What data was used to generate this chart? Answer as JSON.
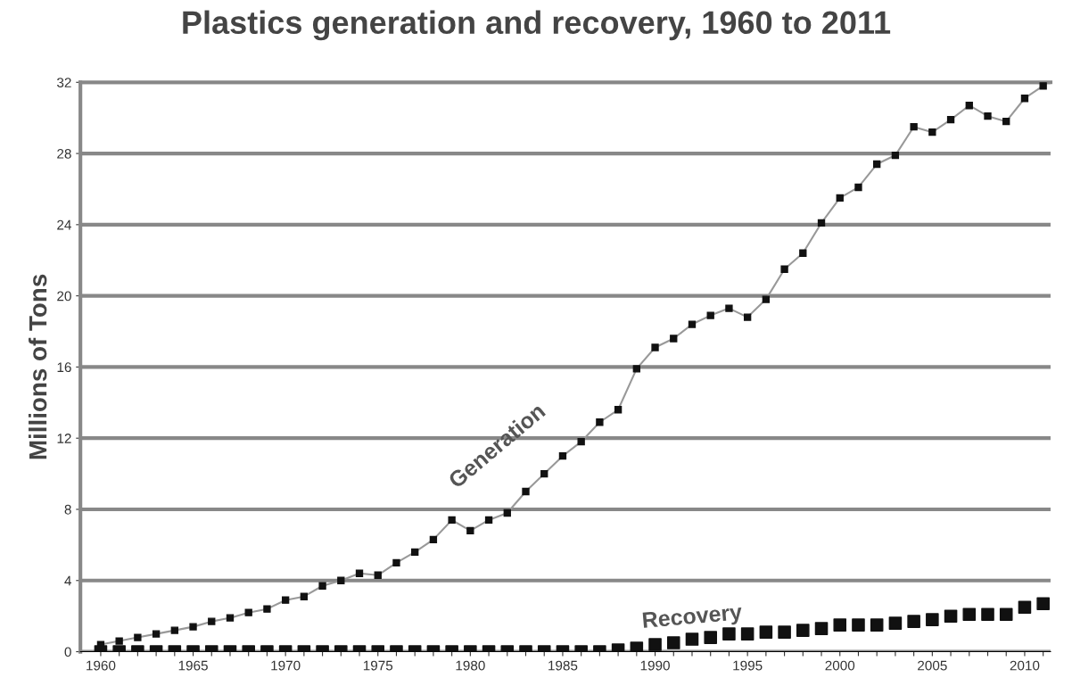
{
  "chart_data": {
    "type": "line",
    "title": "Plastics generation and recovery, 1960 to 2011",
    "ylabel": "Millions of Tons",
    "x": [
      1960,
      1961,
      1962,
      1963,
      1964,
      1965,
      1966,
      1967,
      1968,
      1969,
      1970,
      1971,
      1972,
      1973,
      1974,
      1975,
      1976,
      1977,
      1978,
      1979,
      1980,
      1981,
      1982,
      1983,
      1984,
      1985,
      1986,
      1987,
      1988,
      1989,
      1990,
      1991,
      1992,
      1993,
      1994,
      1995,
      1996,
      1997,
      1998,
      1999,
      2000,
      2001,
      2002,
      2003,
      2004,
      2005,
      2006,
      2007,
      2008,
      2009,
      2010,
      2011
    ],
    "series": [
      {
        "name": "Generation",
        "color": "#111111",
        "marker": "square",
        "values": [
          0.4,
          0.6,
          0.8,
          1.0,
          1.2,
          1.4,
          1.7,
          1.9,
          2.2,
          2.4,
          2.9,
          3.1,
          3.7,
          4.0,
          4.4,
          4.3,
          5.0,
          5.6,
          6.3,
          7.4,
          6.8,
          7.4,
          7.8,
          9.0,
          10.0,
          11.0,
          11.8,
          12.9,
          13.6,
          15.9,
          17.1,
          17.6,
          18.4,
          18.9,
          19.3,
          18.8,
          19.8,
          21.5,
          22.4,
          24.1,
          25.5,
          26.1,
          27.4,
          27.9,
          29.5,
          29.2,
          29.9,
          30.7,
          30.1,
          29.8,
          31.1,
          31.8
        ]
      },
      {
        "name": "Recovery",
        "type": "scatter",
        "color": "#111111",
        "marker": "square",
        "values": [
          0,
          0,
          0,
          0,
          0,
          0,
          0,
          0,
          0,
          0,
          0,
          0,
          0,
          0,
          0,
          0,
          0,
          0,
          0,
          0,
          0,
          0,
          0,
          0,
          0,
          0,
          0,
          0,
          0.1,
          0.2,
          0.4,
          0.5,
          0.7,
          0.8,
          1.0,
          1.0,
          1.1,
          1.1,
          1.2,
          1.3,
          1.5,
          1.5,
          1.5,
          1.6,
          1.7,
          1.8,
          2.0,
          2.1,
          2.1,
          2.1,
          2.5,
          2.7
        ]
      }
    ],
    "xlim": [
      1958.9,
      2011.4
    ],
    "xticks": [
      1960,
      {
        "value": 1961,
        "label": null
      },
      {
        "value": 1962,
        "label": null
      },
      {
        "value": 1963,
        "label": null
      },
      {
        "value": 1964,
        "label": null
      },
      1965,
      {
        "value": 1966,
        "label": null
      },
      {
        "value": 1967,
        "label": null
      },
      {
        "value": 1968,
        "label": null
      },
      {
        "value": 1969,
        "label": null
      },
      1970,
      {
        "value": 1971,
        "label": null
      },
      {
        "value": 1972,
        "label": null
      },
      {
        "value": 1973,
        "label": null
      },
      {
        "value": 1974,
        "label": null
      },
      1975,
      {
        "value": 1976,
        "label": null
      },
      {
        "value": 1977,
        "label": null
      },
      {
        "value": 1978,
        "label": null
      },
      {
        "value": 1979,
        "label": null
      },
      1980,
      {
        "value": 1981,
        "label": null
      },
      {
        "value": 1982,
        "label": null
      },
      {
        "value": 1983,
        "label": null
      },
      {
        "value": 1984,
        "label": null
      },
      1985,
      {
        "value": 1986,
        "label": null
      },
      {
        "value": 1987,
        "label": null
      },
      {
        "value": 1988,
        "label": null
      },
      {
        "value": 1989,
        "label": null
      },
      1990,
      {
        "value": 1991,
        "label": null
      },
      {
        "value": 1992,
        "label": null
      },
      {
        "value": 1993,
        "label": null
      },
      {
        "value": 1994,
        "label": null
      },
      1995,
      {
        "value": 1996,
        "label": null
      },
      {
        "value": 1997,
        "label": null
      },
      {
        "value": 1998,
        "label": null
      },
      {
        "value": 1999,
        "label": null
      },
      2000,
      {
        "value": 2001,
        "label": null
      },
      {
        "value": 2002,
        "label": null
      },
      {
        "value": 2003,
        "label": null
      },
      {
        "value": 2004,
        "label": null
      },
      2005,
      {
        "value": 2006,
        "label": null
      },
      {
        "value": 2007,
        "label": null
      },
      {
        "value": 2008,
        "label": null
      },
      {
        "value": 2009,
        "label": null
      },
      2010,
      {
        "value": 2011,
        "label": null
      }
    ],
    "ylim": [
      0,
      32
    ],
    "yticks": [
      0,
      4,
      8,
      12,
      16,
      20,
      24,
      28,
      32
    ],
    "grid": "y",
    "legend": false
  }
}
